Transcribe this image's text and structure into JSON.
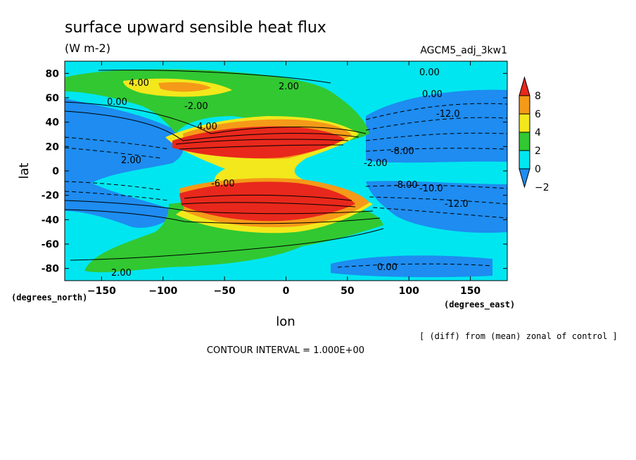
{
  "chart_data": {
    "type": "heatmap",
    "title": "surface upward sensible heat flux",
    "units": "(W m-2)",
    "run_label": "AGCM5_adj_3kw1",
    "xlabel": "lon",
    "ylabel": "lat",
    "x_unit_label": "(degrees_east)",
    "y_unit_label": "(degrees_north)",
    "xlim": [
      -180,
      180
    ],
    "ylim": [
      -90,
      90
    ],
    "x_ticks": [
      "-150",
      "-100",
      "-50",
      "0",
      "50",
      "100",
      "150"
    ],
    "y_ticks": [
      "80",
      "60",
      "40",
      "20",
      "0",
      "-20",
      "-40",
      "-60",
      "-80"
    ],
    "colorbar": {
      "labels": [
        "8",
        "6",
        "4",
        "2",
        "0",
        "-2"
      ],
      "levels": [
        8,
        6,
        4,
        2,
        0,
        -2
      ],
      "colors": [
        "#e8281c",
        "#f59a18",
        "#f2e81c",
        "#32c832",
        "#00e6f0",
        "#1e8cf0"
      ]
    },
    "contour_labels": [
      "4.00",
      "2.00",
      "0.00",
      "0.00",
      "0.00",
      "-2.00",
      "-12.0",
      "4.00",
      "-8.00",
      "2.00",
      "-2.00",
      "-6.00",
      "-8.00",
      "-10.0",
      "-12.0",
      "2.00",
      "0.00"
    ],
    "footnote": "[ (diff) from (mean) zonal of control ]",
    "contour_interval": "CONTOUR INTERVAL = 1.000E+00"
  },
  "colors": {
    "blue": "#1e8cf0",
    "cyan": "#00e6f0",
    "green": "#32c832",
    "yellow": "#f2e81c",
    "orange": "#f59a18",
    "red": "#e8281c"
  }
}
